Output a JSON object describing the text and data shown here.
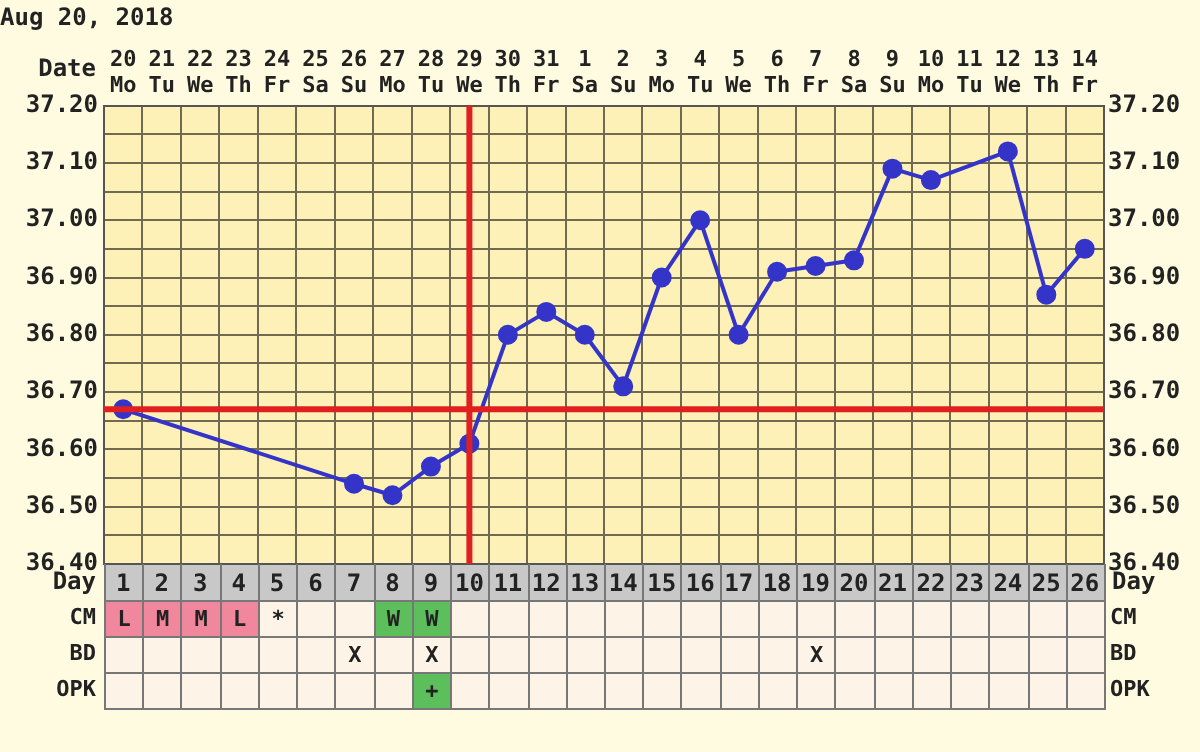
{
  "chart_data": [
    {
      "type": "line",
      "title": "Aug 20, 2018",
      "xlabel": "Date",
      "categories": [
        "20 Mo",
        "21 Tu",
        "22 We",
        "23 Th",
        "24 Fr",
        "25 Sa",
        "26 Su",
        "27 Mo",
        "28 Tu",
        "29 We",
        "30 Th",
        "31 Fr",
        "1 Sa",
        "2 Su",
        "3 Mo",
        "4 Tu",
        "5 We",
        "6 Th",
        "7 Fr",
        "8 Sa",
        "9 Su",
        "10 Mo",
        "11 Tu",
        "12 We",
        "13 Th",
        "14 Fr"
      ],
      "series": [
        {
          "color": "#3434c8",
          "values": [
            36.67,
            null,
            null,
            null,
            null,
            null,
            36.54,
            36.52,
            36.57,
            36.61,
            36.8,
            36.84,
            36.8,
            36.71,
            36.9,
            37.0,
            36.8,
            36.91,
            36.92,
            36.93,
            37.09,
            37.07,
            null,
            37.12,
            36.87,
            36.95
          ]
        }
      ],
      "ylim": [
        36.4,
        37.2
      ],
      "yticks": [
        {
          "value": 36.4,
          "label": "36.40"
        },
        {
          "value": 36.45,
          "label": null
        },
        {
          "value": 36.5,
          "label": "36.50"
        },
        {
          "value": 36.55,
          "label": null
        },
        {
          "value": 36.6,
          "label": "36.60"
        },
        {
          "value": 36.65,
          "label": null
        },
        {
          "value": 36.7,
          "label": "36.70"
        },
        {
          "value": 36.75,
          "label": null
        },
        {
          "value": 36.8,
          "label": "36.80"
        },
        {
          "value": 36.85,
          "label": null
        },
        {
          "value": 36.9,
          "label": "36.90"
        },
        {
          "value": 36.95,
          "label": null
        },
        {
          "value": 37.0,
          "label": "37.00"
        },
        {
          "value": 37.05,
          "label": null
        },
        {
          "value": 37.1,
          "label": "37.10"
        },
        {
          "value": 37.15,
          "label": null
        },
        {
          "value": 37.2,
          "label": "37.20"
        }
      ],
      "y2lim": [
        36.4,
        37.2
      ],
      "y2ticks": [
        {
          "value": 36.4,
          "label": "36.40"
        },
        {
          "value": 36.5,
          "label": "36.50"
        },
        {
          "value": 36.6,
          "label": "36.60"
        },
        {
          "value": 36.7,
          "label": "36.70"
        },
        {
          "value": 36.8,
          "label": "36.80"
        },
        {
          "value": 36.9,
          "label": "36.90"
        },
        {
          "value": 37.0,
          "label": "37.00"
        },
        {
          "value": 37.1,
          "label": "37.10"
        },
        {
          "value": 37.2,
          "label": "37.20"
        }
      ],
      "x2label": "Day",
      "x2lim": [
        0.5,
        26.5
      ],
      "x2ticks": [
        1,
        2,
        3,
        4,
        5,
        6,
        7,
        8,
        9,
        10,
        11,
        12,
        13,
        14,
        15,
        16,
        17,
        18,
        19,
        20,
        21,
        22,
        23,
        24,
        25,
        26
      ],
      "ref_lines": [
        {
          "axis": "y",
          "value": 36.67,
          "color": "#e02020"
        },
        {
          "axis": "x",
          "value": "29 We",
          "color": "#e02020"
        }
      ],
      "grid": true,
      "legend": false,
      "marker": "circle",
      "line_style": "solid"
    },
    {
      "type": "other",
      "y_categories": [
        "CM",
        "BD",
        "OPK"
      ],
      "cell_labels": [
        [
          "L",
          "M",
          "M",
          "L",
          "*",
          null,
          null,
          "W",
          "W",
          null,
          null,
          null,
          null,
          null,
          null,
          null,
          null,
          null,
          null,
          null,
          null,
          null,
          null,
          null,
          null,
          null
        ],
        [
          null,
          null,
          null,
          null,
          null,
          null,
          "X",
          null,
          "X",
          null,
          null,
          null,
          null,
          null,
          null,
          null,
          null,
          null,
          "X",
          null,
          null,
          null,
          null,
          null,
          null,
          null
        ],
        [
          null,
          null,
          null,
          null,
          null,
          null,
          null,
          null,
          "+",
          null,
          null,
          null,
          null,
          null,
          null,
          null,
          null,
          null,
          null,
          null,
          null,
          null,
          null,
          null,
          null,
          null
        ]
      ],
      "colors": [
        [
          "#f0879c",
          "#f0879c",
          "#f0879c",
          "#f0879c",
          null,
          null,
          null,
          "#5cbf5c",
          "#5cbf5c",
          null,
          null,
          null,
          null,
          null,
          null,
          null,
          null,
          null,
          null,
          null,
          null,
          null,
          null,
          null,
          null,
          null
        ],
        [
          null,
          null,
          null,
          null,
          null,
          null,
          null,
          null,
          null,
          null,
          null,
          null,
          null,
          null,
          null,
          null,
          null,
          null,
          null,
          null,
          null,
          null,
          null,
          null,
          null,
          null
        ],
        [
          null,
          null,
          null,
          null,
          null,
          null,
          null,
          null,
          "#5cbf5c",
          null,
          null,
          null,
          null,
          null,
          null,
          null,
          null,
          null,
          null,
          null,
          null,
          null,
          null,
          null,
          null,
          null
        ]
      ]
    }
  ]
}
